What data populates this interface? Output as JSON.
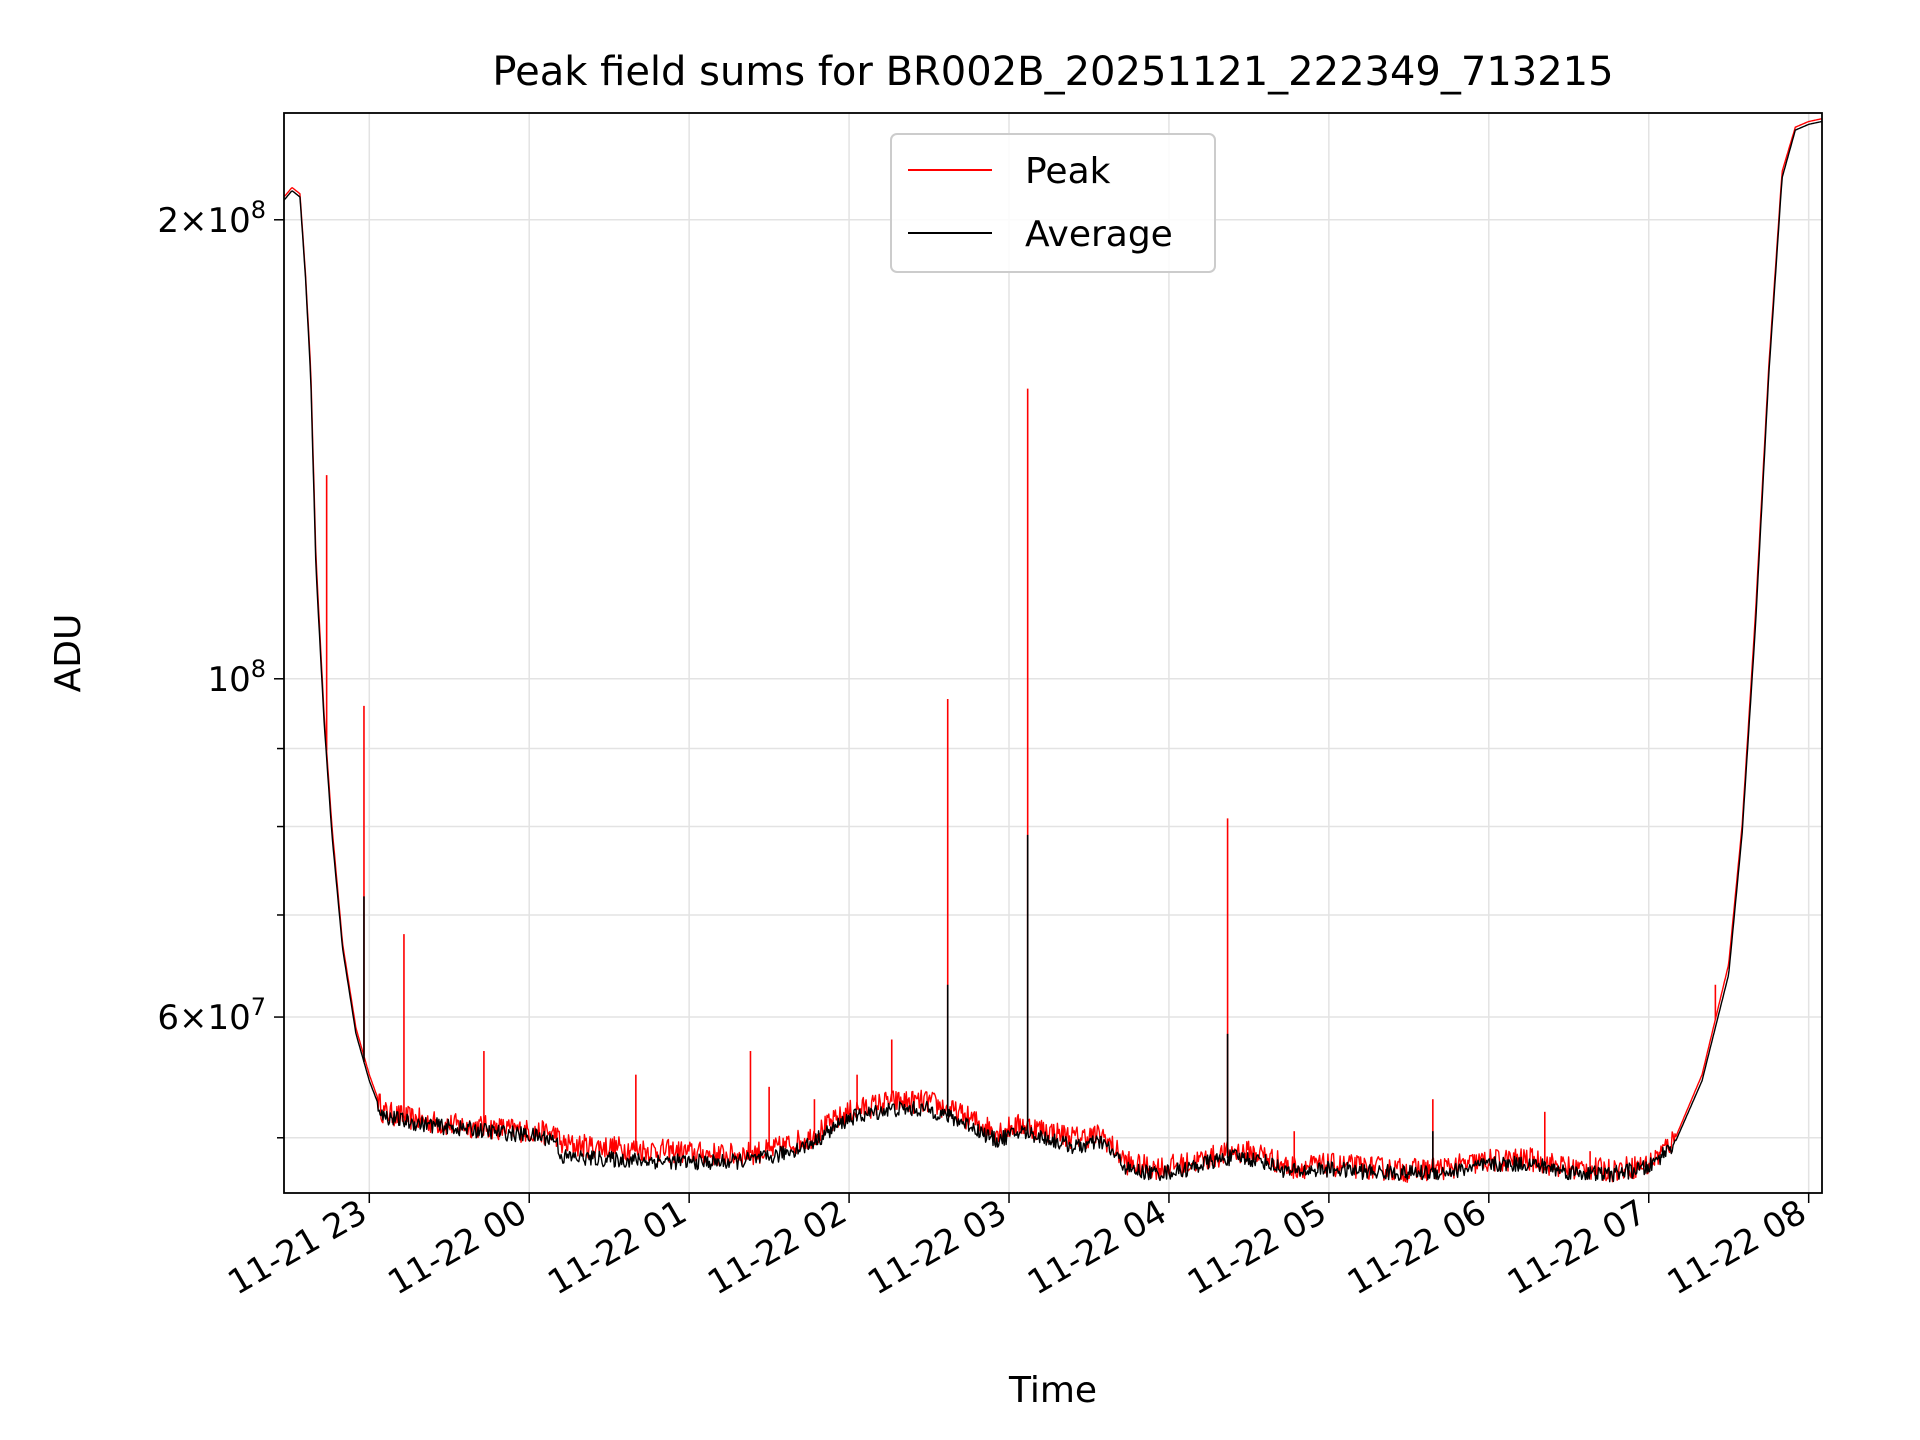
{
  "chart_data": {
    "type": "line",
    "title": "Peak field sums for BR002B_20251121_222349_713215",
    "xlabel": "Time",
    "ylabel": "ADU",
    "x_unit": "time of day, 2025-11-21 to 2025-11-22",
    "xlim": [
      "11-21 22:28",
      "11-22 08:05"
    ],
    "ylim": [
      46000000,
      235000000
    ],
    "yscale": "log",
    "grid": true,
    "legend_position": "upper center",
    "x_ticks": [
      "11-21 23",
      "11-22 00",
      "11-22 01",
      "11-22 02",
      "11-22 03",
      "11-22 04",
      "11-22 05",
      "11-22 06",
      "11-22 07",
      "11-22 08"
    ],
    "y_ticks": [
      {
        "value": 60000000,
        "mantissa": "6",
        "exponent": "7"
      },
      {
        "value": 100000000,
        "mantissa": "",
        "exponent": "8"
      },
      {
        "value": 200000000,
        "mantissa": "2",
        "exponent": "8"
      }
    ],
    "series": [
      {
        "name": "Peak",
        "color": "#ff0000",
        "x": [
          "22:28",
          "22:31",
          "22:34",
          "22:36",
          "22:38",
          "22:40",
          "22:43",
          "22:46",
          "22:50",
          "22:55",
          "23:00",
          "23:05",
          "23:15",
          "23:30",
          "23:45",
          "00:00",
          "00:10",
          "00:12",
          "00:30",
          "00:45",
          "01:00",
          "01:15",
          "01:30",
          "01:45",
          "02:00",
          "02:15",
          "02:30",
          "02:45",
          "02:55",
          "03:05",
          "03:15",
          "03:25",
          "03:35",
          "03:45",
          "03:55",
          "04:05",
          "04:15",
          "04:25",
          "04:35",
          "04:45",
          "05:00",
          "05:15",
          "05:30",
          "05:45",
          "06:00",
          "06:15",
          "06:30",
          "06:45",
          "07:00",
          "07:10",
          "07:20",
          "07:30",
          "07:35",
          "07:40",
          "07:45",
          "07:50",
          "07:55",
          "08:00",
          "08:05"
        ],
        "y": [
          207000000,
          210000000,
          208000000,
          185000000,
          160000000,
          120000000,
          95000000,
          80000000,
          67000000,
          59000000,
          55000000,
          52000000,
          51500000,
          51000000,
          50800000,
          50500000,
          50300000,
          49500000,
          49300000,
          49100000,
          48900000,
          48700000,
          49000000,
          50000000,
          52000000,
          52800000,
          52800000,
          51500000,
          50500000,
          51000000,
          50500000,
          50000000,
          50200000,
          48000000,
          47800000,
          48000000,
          48500000,
          49000000,
          48800000,
          47800000,
          48000000,
          47800000,
          47600000,
          47800000,
          48300000,
          48400000,
          47800000,
          47600000,
          48000000,
          50000000,
          55000000,
          65000000,
          80000000,
          110000000,
          160000000,
          215000000,
          230000000,
          232000000,
          233000000
        ],
        "spikes": [
          {
            "x": "22:44",
            "y": 136000000
          },
          {
            "x": "22:58",
            "y": 96000000
          },
          {
            "x": "23:13",
            "y": 68000000
          },
          {
            "x": "23:43",
            "y": 57000000
          },
          {
            "x": "00:40",
            "y": 55000000
          },
          {
            "x": "01:23",
            "y": 57000000
          },
          {
            "x": "01:30",
            "y": 54000000
          },
          {
            "x": "01:47",
            "y": 53000000
          },
          {
            "x": "02:03",
            "y": 55000000
          },
          {
            "x": "02:16",
            "y": 58000000
          },
          {
            "x": "02:37",
            "y": 97000000
          },
          {
            "x": "03:07",
            "y": 155000000
          },
          {
            "x": "03:45",
            "y": 49000000
          },
          {
            "x": "04:22",
            "y": 81000000
          },
          {
            "x": "04:47",
            "y": 50500000
          },
          {
            "x": "05:39",
            "y": 53000000
          },
          {
            "x": "06:21",
            "y": 52000000
          },
          {
            "x": "06:38",
            "y": 49000000
          },
          {
            "x": "07:25",
            "y": 63000000
          }
        ]
      },
      {
        "name": "Average",
        "color": "#000000",
        "x": [
          "22:28",
          "22:31",
          "22:34",
          "22:36",
          "22:38",
          "22:40",
          "22:43",
          "22:46",
          "22:50",
          "22:55",
          "23:00",
          "23:05",
          "23:15",
          "23:30",
          "23:45",
          "00:00",
          "00:10",
          "00:12",
          "00:30",
          "00:45",
          "01:00",
          "01:15",
          "01:30",
          "01:45",
          "02:00",
          "02:15",
          "02:30",
          "02:45",
          "02:55",
          "03:05",
          "03:15",
          "03:25",
          "03:35",
          "03:45",
          "03:55",
          "04:05",
          "04:15",
          "04:25",
          "04:35",
          "04:45",
          "05:00",
          "05:15",
          "05:30",
          "05:45",
          "06:00",
          "06:15",
          "06:30",
          "06:45",
          "07:00",
          "07:10",
          "07:20",
          "07:30",
          "07:35",
          "07:40",
          "07:45",
          "07:50",
          "07:55",
          "08:00",
          "08:05"
        ],
        "y": [
          206000000,
          209000000,
          207000000,
          184000000,
          158000000,
          118000000,
          94000000,
          79000000,
          66500000,
          58500000,
          54500000,
          51700000,
          51200000,
          50800000,
          50500000,
          50200000,
          49900000,
          48600000,
          48400000,
          48300000,
          48200000,
          48200000,
          48500000,
          49500000,
          51500000,
          52200000,
          52200000,
          51000000,
          49800000,
          50500000,
          49900000,
          49300000,
          49700000,
          47600000,
          47400000,
          47600000,
          48200000,
          48600000,
          48300000,
          47500000,
          47700000,
          47500000,
          47400000,
          47500000,
          48000000,
          48100000,
          47500000,
          47300000,
          47800000,
          49700000,
          54500000,
          64000000,
          79000000,
          108000000,
          158000000,
          213000000,
          229000000,
          231000000,
          232000000
        ],
        "spikes": [
          {
            "x": "22:58",
            "y": 72000000
          },
          {
            "x": "02:37",
            "y": 63000000
          },
          {
            "x": "03:07",
            "y": 79000000
          },
          {
            "x": "04:22",
            "y": 58500000
          },
          {
            "x": "05:39",
            "y": 50500000
          }
        ]
      }
    ]
  }
}
